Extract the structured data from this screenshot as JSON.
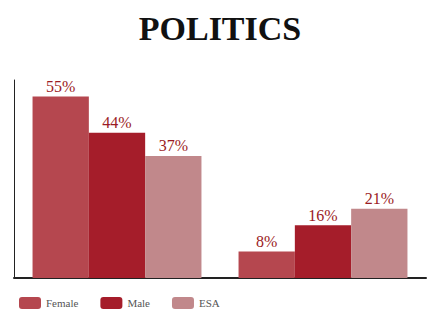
{
  "chart_data": {
    "type": "bar",
    "title": "POLITICS",
    "categories": [
      null,
      null
    ],
    "series": [
      {
        "name": "Female",
        "color": "#b5474f",
        "values": [
          55,
          8
        ],
        "value_labels": [
          "55%",
          "8%"
        ]
      },
      {
        "name": "Male",
        "color": "#a51d2a",
        "values": [
          44,
          16
        ],
        "value_labels": [
          "44%",
          "16%"
        ]
      },
      {
        "name": "ESA",
        "color": "#c1888b",
        "values": [
          37,
          21
        ],
        "value_labels": [
          "37%",
          "21%"
        ]
      }
    ],
    "ylim": [
      0,
      60
    ],
    "data_labels": true,
    "tick_labels": false,
    "grid": false,
    "legend": "bottom-left"
  }
}
